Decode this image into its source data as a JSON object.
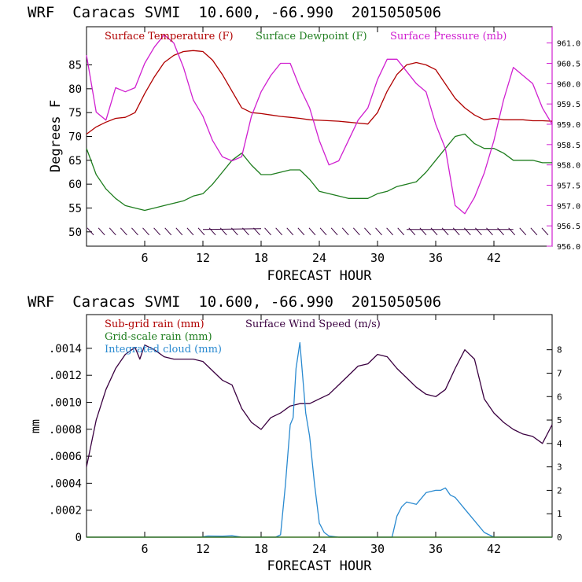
{
  "charts": [
    {
      "title": "WRF  Caracas SVMI  10.600, -66.990  2015050506",
      "xlabel": "FORECAST HOUR",
      "ylabel": "Degrees F",
      "legend": [
        {
          "label": "Surface Temperature (F)",
          "color": "#b00000"
        },
        {
          "label": "Surface Dewpoint (F)",
          "color": "#1e7d1e"
        },
        {
          "label": "Surface Pressure (mb)",
          "color": "#d020d0"
        }
      ]
    },
    {
      "title": "WRF  Caracas SVMI  10.600, -66.990  2015050506",
      "xlabel": "FORECAST HOUR",
      "ylabel": "mm",
      "legend": [
        {
          "label": "Sub-grid rain (mm)",
          "color": "#b00000"
        },
        {
          "label": "Surface Wind Speed (m/s)",
          "color": "#3a0040"
        },
        {
          "label": "Grid-scale rain (mm)",
          "color": "#1e7d1e"
        },
        {
          "label": "Integrated cloud (mm)",
          "color": "#2a8ad0"
        }
      ]
    }
  ],
  "chart_data": [
    {
      "type": "line",
      "title": "WRF  Caracas SVMI  10.600, -66.990  2015050506",
      "xlabel": "FORECAST HOUR",
      "ylabel": "Degrees F",
      "xlim": [
        0,
        48
      ],
      "ylim": [
        47,
        93
      ],
      "xticks": [
        6,
        12,
        18,
        24,
        30,
        36,
        42
      ],
      "yticks": [
        50,
        55,
        60,
        65,
        70,
        75,
        80,
        85
      ],
      "y2label": "",
      "y2lim": [
        956.0,
        961.4
      ],
      "y2ticks": [
        "956.0",
        "956.5",
        "957.0",
        "957.5",
        "958.0",
        "958.5",
        "959.0",
        "959.5",
        "960.0",
        "960.5",
        "961.0"
      ],
      "series": [
        {
          "name": "Surface Temperature (F)",
          "axis": "left",
          "color": "#b00000",
          "x": [
            0,
            1,
            2,
            3,
            4,
            5,
            6,
            7,
            8,
            9,
            10,
            11,
            12,
            13,
            14,
            15,
            16,
            17,
            18,
            19,
            20,
            21,
            22,
            23,
            24,
            25,
            26,
            27,
            28,
            29,
            30,
            31,
            32,
            33,
            34,
            35,
            36,
            37,
            38,
            39,
            40,
            41,
            42,
            43,
            44,
            45,
            46,
            47,
            48
          ],
          "y": [
            70.5,
            72,
            73,
            73.8,
            74,
            75,
            79,
            82.5,
            85.5,
            87,
            87.8,
            88,
            87.8,
            86,
            83,
            79.5,
            76,
            75,
            74.8,
            74.5,
            74.2,
            74,
            73.8,
            73.5,
            73.4,
            73.3,
            73.2,
            73,
            72.8,
            72.6,
            75,
            79.5,
            83,
            85,
            85.5,
            85,
            84,
            81,
            78,
            76,
            74.5,
            73.5,
            73.8,
            73.5,
            73.5,
            73.5,
            73.3,
            73.3,
            73.2
          ]
        },
        {
          "name": "Surface Dewpoint (F)",
          "axis": "left",
          "color": "#1e7d1e",
          "x": [
            0,
            1,
            2,
            3,
            4,
            5,
            6,
            7,
            8,
            9,
            10,
            11,
            12,
            13,
            14,
            15,
            16,
            17,
            18,
            19,
            20,
            21,
            22,
            23,
            24,
            25,
            26,
            27,
            28,
            29,
            30,
            31,
            32,
            33,
            34,
            35,
            36,
            37,
            38,
            39,
            40,
            41,
            42,
            43,
            44,
            45,
            46,
            47,
            48
          ],
          "y": [
            67.5,
            62,
            59,
            57,
            55.5,
            55,
            54.5,
            55,
            55.5,
            56,
            56.5,
            57.5,
            58,
            60,
            62.5,
            65,
            66.5,
            64,
            62,
            62,
            62.5,
            63,
            63,
            61,
            58.5,
            58,
            57.5,
            57,
            57,
            57,
            58,
            58.5,
            59.5,
            60,
            60.5,
            62.5,
            65,
            67.5,
            70,
            70.5,
            68.5,
            67.5,
            67.5,
            66.5,
            65,
            65,
            65,
            64.5,
            64.5
          ]
        },
        {
          "name": "Surface Pressure (mb)",
          "axis": "right",
          "color": "#d020d0",
          "x": [
            0,
            1,
            2,
            3,
            4,
            5,
            6,
            7,
            8,
            9,
            10,
            11,
            12,
            13,
            14,
            15,
            16,
            17,
            18,
            19,
            20,
            21,
            22,
            23,
            24,
            25,
            26,
            27,
            28,
            29,
            30,
            31,
            32,
            33,
            34,
            35,
            36,
            37,
            38,
            39,
            40,
            41,
            42,
            43,
            44,
            45,
            46,
            47,
            48
          ],
          "y": [
            960.7,
            959.3,
            959.1,
            959.9,
            959.8,
            959.9,
            960.5,
            960.9,
            961.2,
            961.0,
            960.4,
            959.6,
            959.2,
            958.6,
            958.2,
            958.1,
            958.2,
            959.2,
            959.8,
            960.2,
            960.5,
            960.5,
            959.9,
            959.4,
            958.6,
            958.0,
            958.1,
            958.6,
            959.1,
            959.4,
            960.1,
            960.6,
            960.6,
            960.3,
            960.0,
            959.8,
            959.0,
            958.4,
            957.0,
            956.8,
            957.2,
            957.8,
            958.6,
            959.6,
            960.4,
            960.2,
            960.0,
            959.4,
            959.0
          ]
        }
      ],
      "wind_barbs": {
        "x_start": 0,
        "x_end": 48,
        "count": 42,
        "y": 50
      }
    },
    {
      "type": "line",
      "title": "WRF  Caracas SVMI  10.600, -66.990  2015050506",
      "xlabel": "FORECAST HOUR",
      "ylabel": "mm",
      "xlim": [
        0,
        48
      ],
      "ylim": [
        0,
        0.00165
      ],
      "xticks": [
        6,
        12,
        18,
        24,
        30,
        36,
        42
      ],
      "yticks": [
        "0",
        ".0002",
        ".0004",
        ".0006",
        ".0008",
        ".0010",
        ".0012",
        ".0014"
      ],
      "y2lim": [
        0,
        9.5
      ],
      "y2ticks": [
        "0",
        "1",
        "2",
        "3",
        "4",
        "5",
        "6",
        "7",
        "8"
      ],
      "series": [
        {
          "name": "Surface Wind Speed (m/s)",
          "axis": "right",
          "color": "#3a0040",
          "x": [
            0,
            1,
            2,
            3,
            4,
            5,
            5.5,
            6,
            7,
            8,
            9,
            10,
            11,
            12,
            13,
            14,
            15,
            16,
            17,
            18,
            19,
            20,
            21,
            22,
            23,
            24,
            25,
            26,
            27,
            28,
            29,
            30,
            31,
            32,
            33,
            34,
            35,
            36,
            37,
            38,
            39,
            40,
            41,
            42,
            43,
            44,
            45,
            46,
            47,
            48
          ],
          "y": [
            3.0,
            5.0,
            6.3,
            7.2,
            7.8,
            8.1,
            7.6,
            8.2,
            8.0,
            7.7,
            7.6,
            7.6,
            7.6,
            7.5,
            7.1,
            6.7,
            6.5,
            5.5,
            4.9,
            4.6,
            5.1,
            5.3,
            5.6,
            5.7,
            5.7,
            5.9,
            6.1,
            6.5,
            6.9,
            7.3,
            7.4,
            7.8,
            7.7,
            7.2,
            6.8,
            6.4,
            6.1,
            6.0,
            6.3,
            7.2,
            8.0,
            7.6,
            5.9,
            5.3,
            4.9,
            4.6,
            4.4,
            4.3,
            4.0,
            4.8
          ]
        },
        {
          "name": "Integrated cloud (mm)",
          "axis": "right",
          "color": "#2a8ad0",
          "x": [
            0,
            11.8,
            12.5,
            14,
            15,
            16,
            19.5,
            20,
            20.5,
            21,
            21.3,
            21.6,
            22,
            22.3,
            22.6,
            23,
            23.5,
            24,
            24.5,
            25,
            26,
            30,
            31,
            31.5,
            32,
            32.5,
            33,
            34,
            35,
            36,
            36.5,
            37,
            37.5,
            38,
            39,
            40,
            41,
            42,
            48
          ],
          "y": [
            0,
            0,
            0.05,
            0.04,
            0.06,
            0,
            0,
            0.1,
            2.2,
            4.8,
            5.1,
            7.2,
            8.3,
            6.8,
            5.3,
            4.3,
            2.3,
            0.6,
            0.2,
            0.05,
            0,
            0,
            0,
            0,
            0.9,
            1.3,
            1.5,
            1.4,
            1.9,
            2.0,
            2.0,
            2.1,
            1.8,
            1.7,
            1.2,
            0.7,
            0.2,
            0,
            0
          ]
        },
        {
          "name": "Sub-grid rain (mm)",
          "axis": "left",
          "color": "#b00000",
          "x": [
            0,
            48
          ],
          "y": [
            0,
            0
          ]
        },
        {
          "name": "Grid-scale rain (mm)",
          "axis": "left",
          "color": "#1e7d1e",
          "x": [
            0,
            48
          ],
          "y": [
            0,
            0
          ]
        }
      ]
    }
  ]
}
